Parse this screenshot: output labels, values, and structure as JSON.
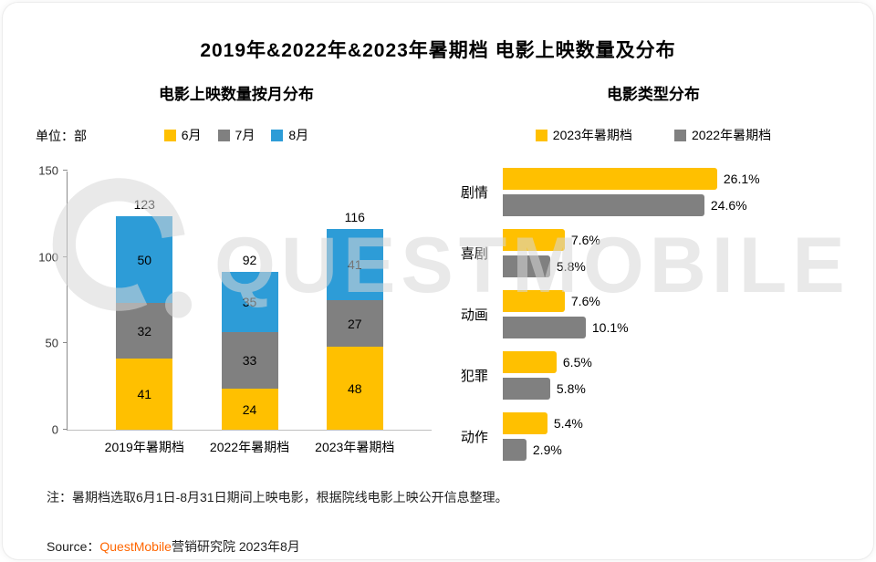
{
  "title": "2019年&2022年&2023年暑期档 电影上映数量及分布",
  "watermark": {
    "text": "QUESTMOBILE"
  },
  "note": "注：暑期档选取6月1日-8月31日期间上映电影，根据院线电影上映公开信息整理。",
  "source": {
    "prefix": "Source：",
    "brand": "QuestMobile",
    "suffix": "营销研究院 2023年8月",
    "brand_color": "#FF6600"
  },
  "chart_data": [
    {
      "type": "bar",
      "subtype": "stacked-vertical",
      "title": "电影上映数量按月分布",
      "unit_label": "单位：部",
      "categories": [
        "2019年暑期档",
        "2022年暑期档",
        "2023年暑期档"
      ],
      "series": [
        {
          "name": "6月",
          "color": "#FFC000",
          "values": [
            41,
            24,
            48
          ]
        },
        {
          "name": "7月",
          "color": "#808080",
          "values": [
            32,
            33,
            27
          ]
        },
        {
          "name": "8月",
          "color": "#2D9CD7",
          "values": [
            50,
            35,
            41
          ]
        }
      ],
      "totals": [
        123,
        92,
        116
      ],
      "ylim": [
        0,
        150
      ],
      "yticks": [
        0,
        50,
        100,
        150
      ],
      "grid": false,
      "legend_position": "top"
    },
    {
      "type": "bar",
      "subtype": "horizontal-grouped",
      "title": "电影类型分布",
      "categories": [
        "剧情",
        "喜剧",
        "动画",
        "犯罪",
        "动作"
      ],
      "series": [
        {
          "name": "2023年暑期档",
          "color": "#FFC000",
          "values": [
            26.1,
            7.6,
            7.6,
            6.5,
            5.4
          ]
        },
        {
          "name": "2022年暑期档",
          "color": "#808080",
          "values": [
            24.6,
            5.8,
            10.1,
            5.8,
            2.9
          ]
        }
      ],
      "value_suffix": "%",
      "xmax": 40,
      "grid": false,
      "legend_position": "top"
    }
  ]
}
